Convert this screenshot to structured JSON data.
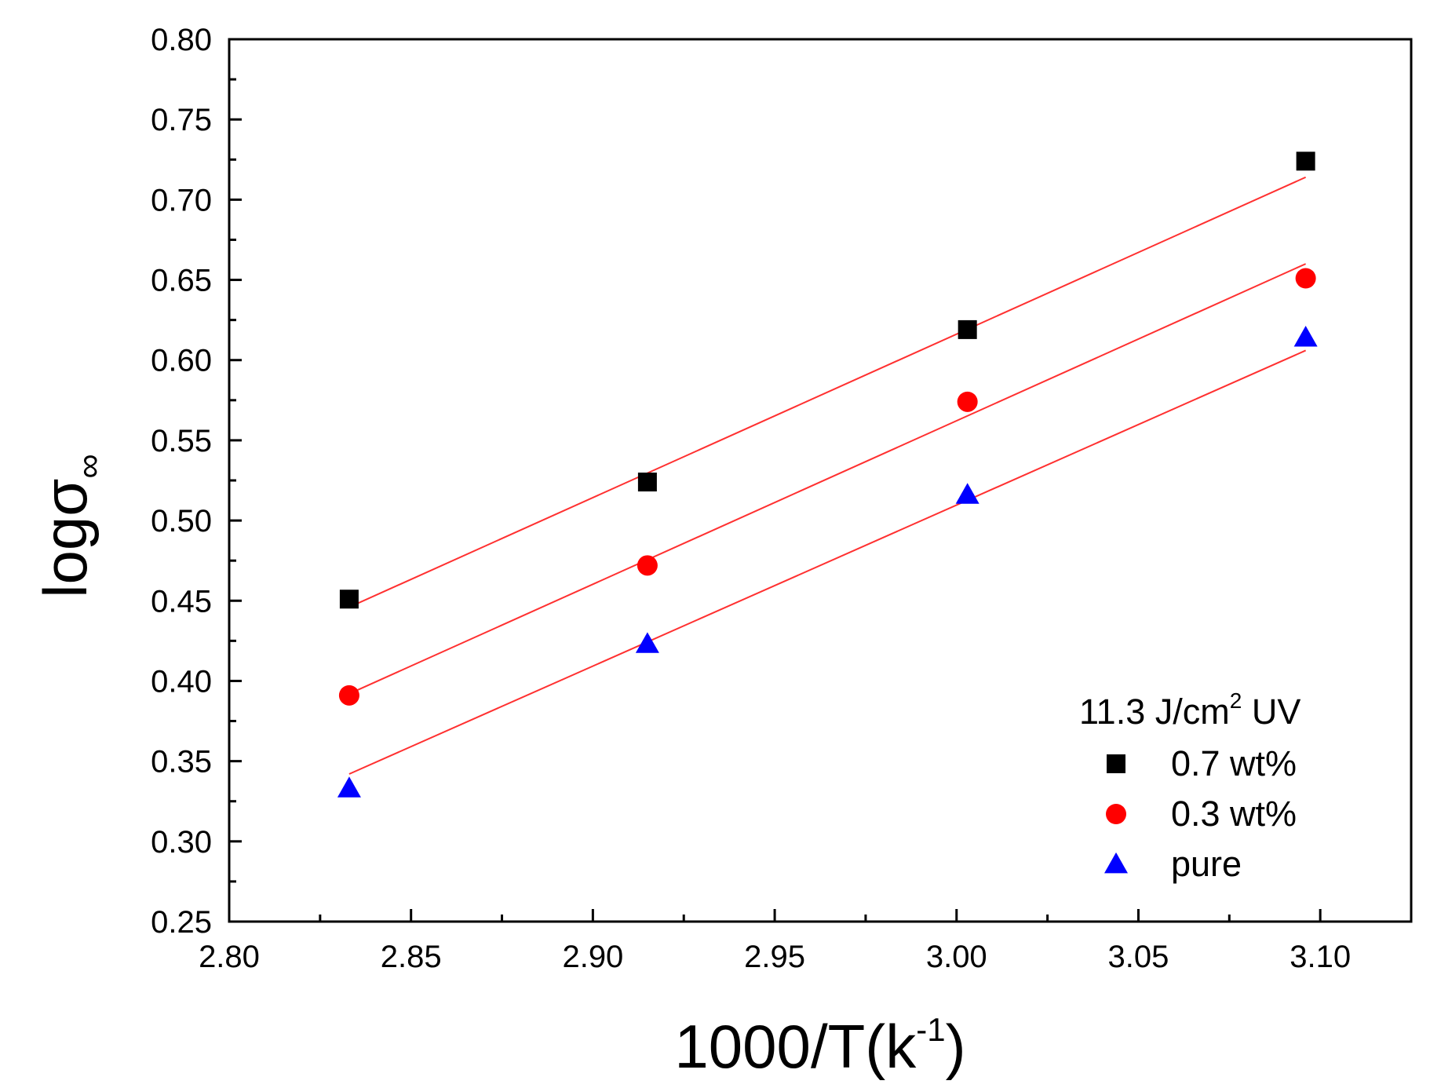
{
  "chart_data": {
    "type": "scatter",
    "xlabel": {
      "main": "1000/T(k",
      "sup": "-1",
      "close": ")"
    },
    "ylabel": {
      "main": "logσ",
      "sub": "∞"
    },
    "xlim": [
      2.8,
      3.125
    ],
    "ylim": [
      0.25,
      0.8
    ],
    "xticks": [
      "2.80",
      "2.85",
      "2.90",
      "2.95",
      "3.00",
      "3.05",
      "3.10"
    ],
    "yticks": [
      "0.25",
      "0.30",
      "0.35",
      "0.40",
      "0.45",
      "0.50",
      "0.55",
      "0.60",
      "0.65",
      "0.70",
      "0.75",
      "0.80"
    ],
    "legend": {
      "title": {
        "main": "11.3 J/cm",
        "sup": "2",
        "tail": " UV"
      },
      "position": "bottom-right"
    },
    "fit_color": "#ff3030",
    "series": [
      {
        "name": "0.7 wt%",
        "marker": "square",
        "color": "#000000",
        "x": [
          2.833,
          2.915,
          3.003,
          3.096
        ],
        "y": [
          0.451,
          0.524,
          0.619,
          0.724
        ],
        "fit": [
          [
            2.833,
            0.446
          ],
          [
            3.096,
            0.714
          ]
        ]
      },
      {
        "name": "0.3 wt%",
        "marker": "circle",
        "color": "#ff0000",
        "x": [
          2.833,
          2.915,
          3.003,
          3.096
        ],
        "y": [
          0.391,
          0.472,
          0.574,
          0.651
        ],
        "fit": [
          [
            2.833,
            0.392
          ],
          [
            3.096,
            0.66
          ]
        ]
      },
      {
        "name": "pure",
        "marker": "triangle",
        "color": "#0000ff",
        "x": [
          2.833,
          2.915,
          3.003,
          3.096
        ],
        "y": [
          0.333,
          0.423,
          0.516,
          0.614
        ],
        "fit": [
          [
            2.833,
            0.342
          ],
          [
            3.096,
            0.606
          ]
        ]
      }
    ]
  }
}
